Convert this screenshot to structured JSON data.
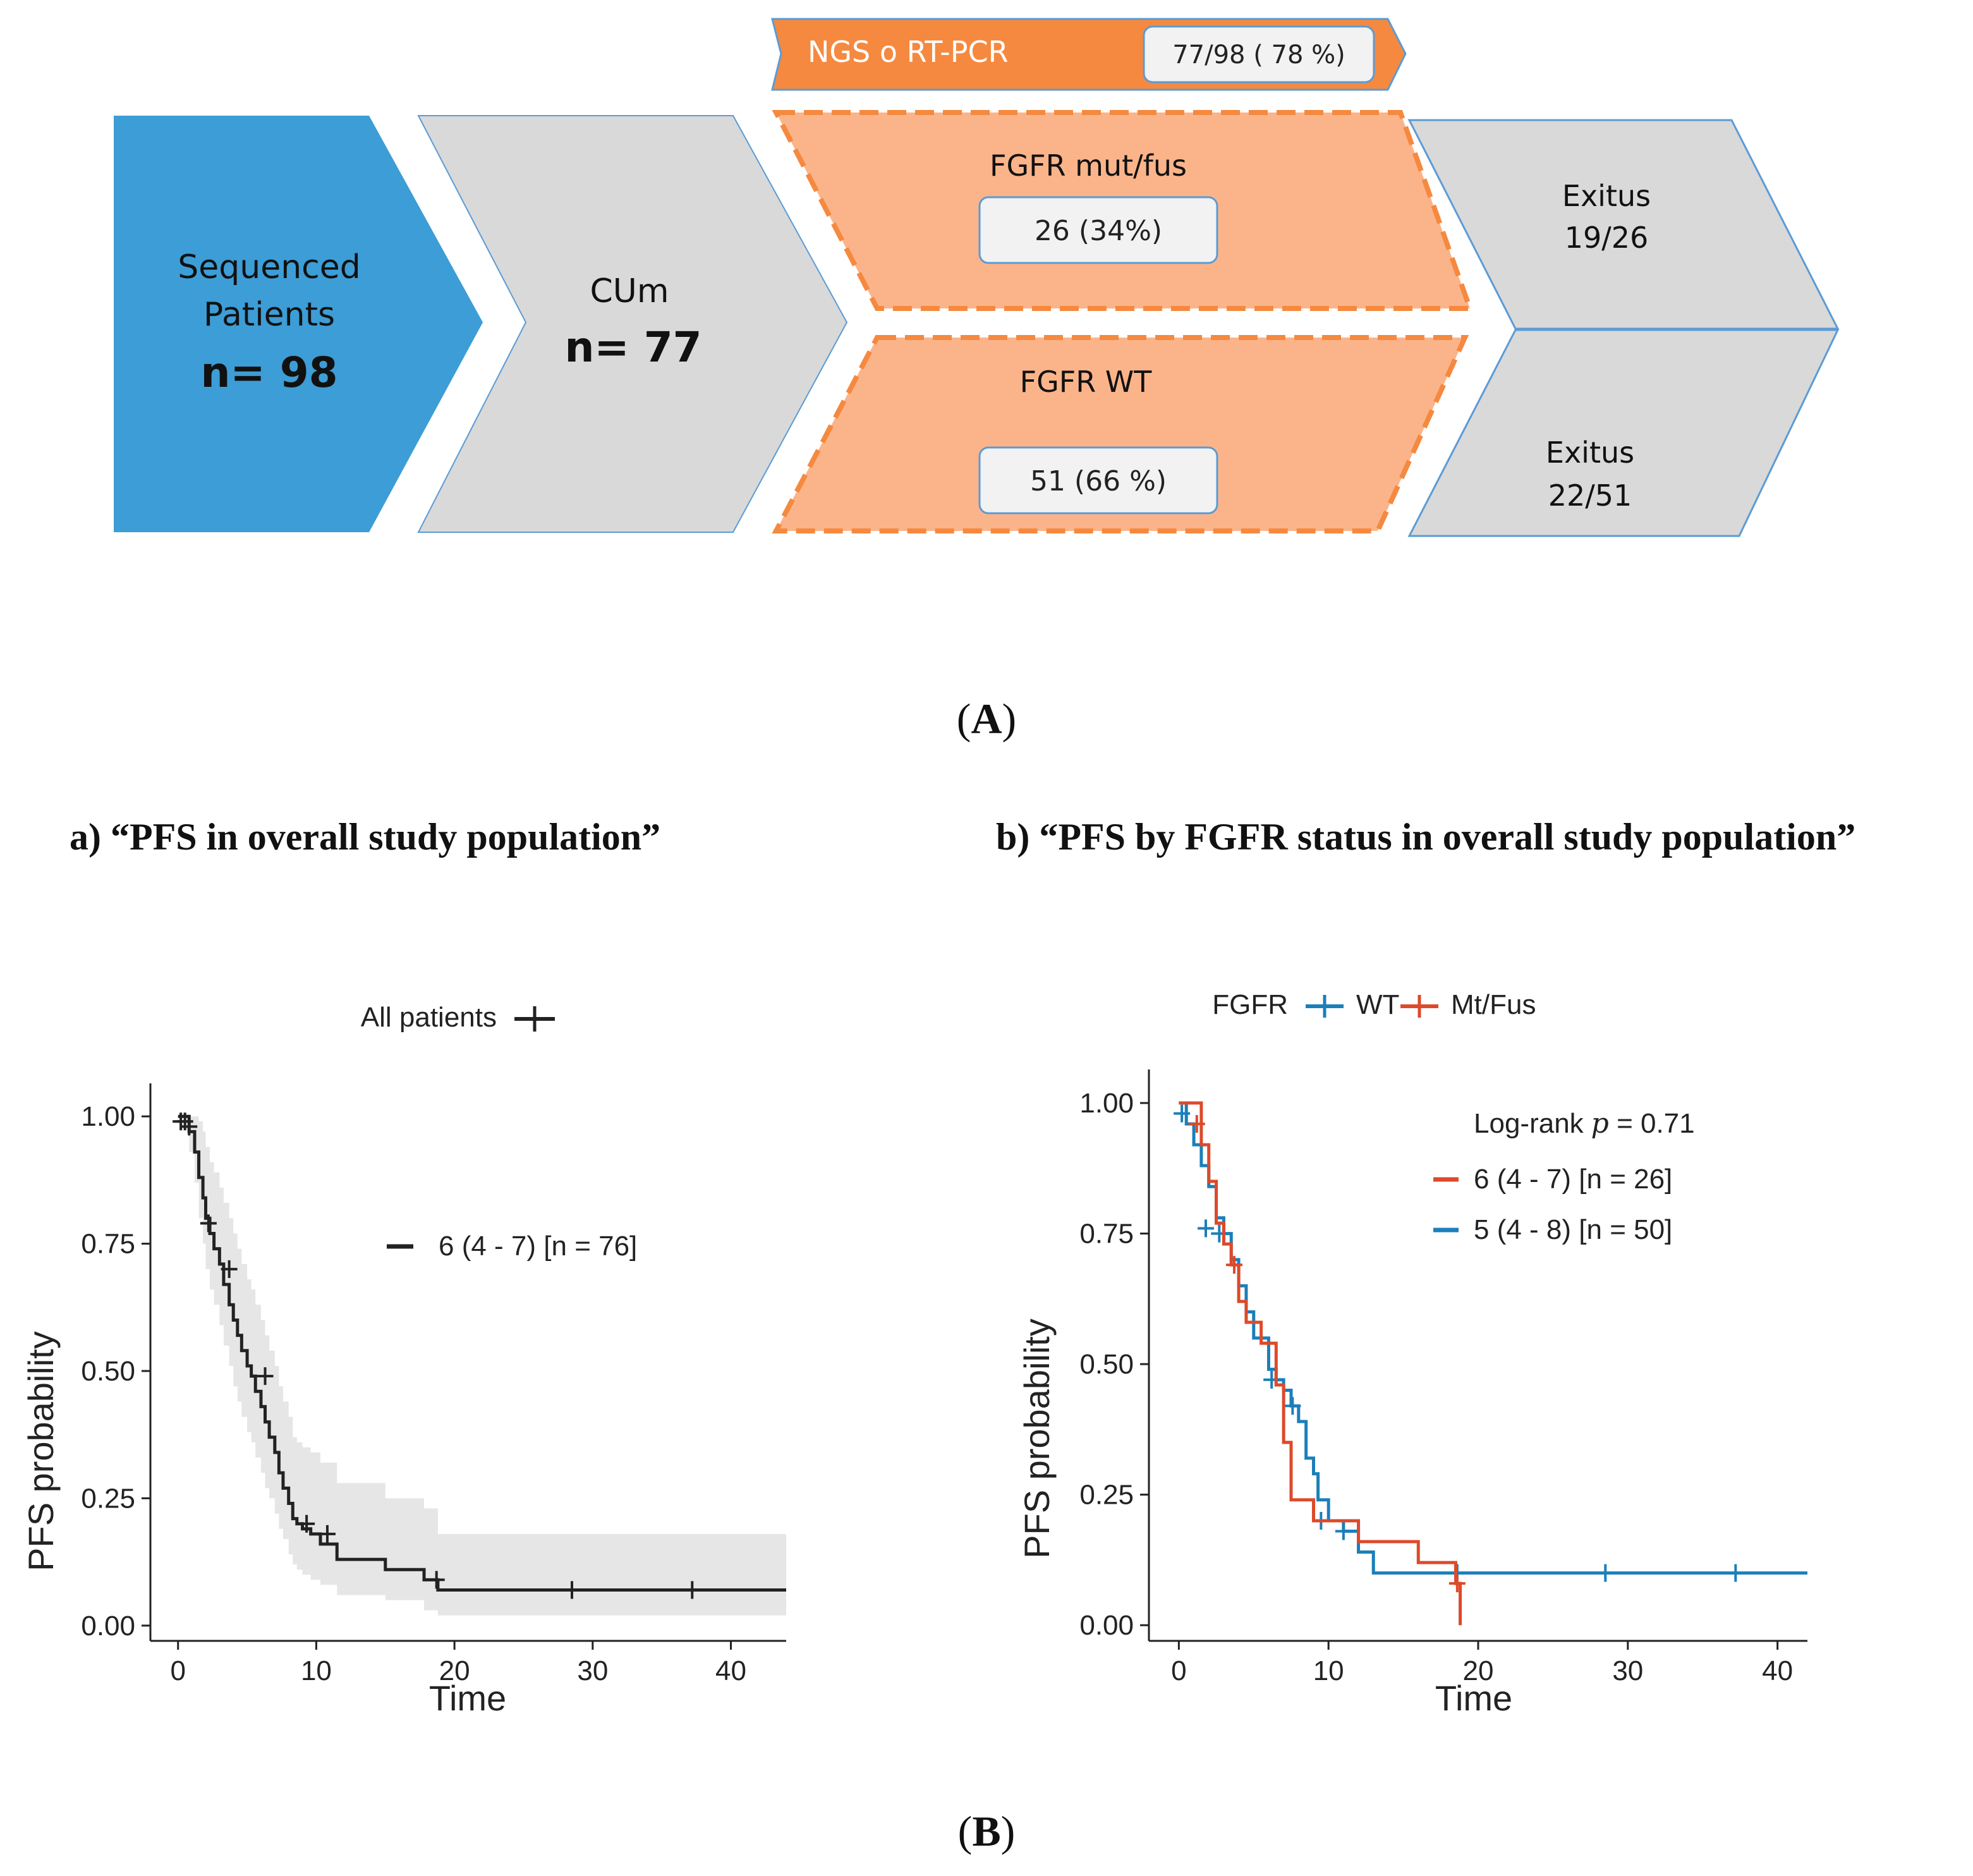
{
  "panelA": {
    "label_open": "(",
    "label": "A",
    "label_close": ")",
    "ngs": {
      "title": "NGS o RT-PCR",
      "value": "77/98 ( 78 %)"
    },
    "sequenced": {
      "line1": "Sequenced",
      "line2": "Patients",
      "count": "n= 98"
    },
    "cum": {
      "line1": "CUm",
      "count": "n= 77"
    },
    "fgfr_mut": {
      "title": "FGFR mut/fus",
      "value": "26 (34%)"
    },
    "fgfr_wt": {
      "title": "FGFR WT",
      "value": "51 (66 %)"
    },
    "exitus_top": {
      "line1": "Exitus",
      "line2": "19/26"
    },
    "exitus_bottom": {
      "line1": "Exitus",
      "line2": "22/51"
    },
    "colors": {
      "blue": "#3d9dd6",
      "gray": "#d9d9d9",
      "orange": "#f5893f",
      "salmon": "#fbb48a"
    }
  },
  "panelB": {
    "label_open": "(",
    "label": "B",
    "label_close": ")"
  },
  "chart_data": [
    {
      "type": "line",
      "subtype": "kaplan-meier",
      "title": "a) “PFS in overall study population”",
      "xlabel": "Time",
      "ylabel": "PFS probability",
      "xlim": [
        -2,
        44
      ],
      "ylim": [
        -0.03,
        1.04
      ],
      "xticks": [
        "0",
        "10",
        "20",
        "30",
        "40"
      ],
      "yticks": [
        "0.00",
        "0.25",
        "0.50",
        "0.75",
        "1.00"
      ],
      "legend": {
        "placement": "top",
        "entries": [
          "All patients"
        ]
      },
      "annotation": "6 (4 - 7) [n = 76]",
      "grid": false,
      "series": [
        {
          "name": "All patients",
          "color": "#222222",
          "x": [
            0,
            0.8,
            1.2,
            1.5,
            1.8,
            2.0,
            2.3,
            2.6,
            3.0,
            3.3,
            3.7,
            4.0,
            4.3,
            4.6,
            5.0,
            5.3,
            5.6,
            6.0,
            6.3,
            6.6,
            7.0,
            7.3,
            7.6,
            8.0,
            8.3,
            8.6,
            9.0,
            9.6,
            10.3,
            11.5,
            12.5,
            15.0,
            17.8,
            18.8,
            44
          ],
          "y": [
            1.0,
            0.97,
            0.93,
            0.88,
            0.84,
            0.8,
            0.77,
            0.74,
            0.71,
            0.67,
            0.63,
            0.6,
            0.57,
            0.54,
            0.51,
            0.49,
            0.46,
            0.43,
            0.4,
            0.37,
            0.34,
            0.3,
            0.27,
            0.24,
            0.21,
            0.2,
            0.19,
            0.18,
            0.16,
            0.13,
            0.13,
            0.11,
            0.09,
            0.07,
            0.07
          ],
          "band_upper": [
            1.0,
            1.0,
            1.0,
            0.99,
            0.97,
            0.94,
            0.91,
            0.89,
            0.86,
            0.83,
            0.8,
            0.77,
            0.74,
            0.71,
            0.68,
            0.66,
            0.63,
            0.6,
            0.57,
            0.54,
            0.51,
            0.47,
            0.44,
            0.41,
            0.37,
            0.36,
            0.35,
            0.34,
            0.32,
            0.28,
            0.28,
            0.25,
            0.23,
            0.18,
            0.18
          ],
          "band_lower": [
            1.0,
            0.93,
            0.87,
            0.8,
            0.75,
            0.7,
            0.66,
            0.63,
            0.59,
            0.55,
            0.51,
            0.47,
            0.44,
            0.41,
            0.38,
            0.36,
            0.33,
            0.3,
            0.27,
            0.25,
            0.22,
            0.19,
            0.17,
            0.14,
            0.12,
            0.11,
            0.1,
            0.09,
            0.08,
            0.06,
            0.06,
            0.05,
            0.03,
            0.02,
            0.02
          ],
          "censor_x": [
            0.2,
            0.5,
            0.8,
            2.2,
            3.7,
            6.3,
            9.3,
            10.8,
            18.7,
            28.5,
            37.2
          ],
          "censor_y": [
            0.99,
            0.99,
            0.98,
            0.79,
            0.7,
            0.49,
            0.2,
            0.18,
            0.09,
            0.07,
            0.07
          ]
        }
      ]
    },
    {
      "type": "line",
      "subtype": "kaplan-meier",
      "title": "b) “PFS by FGFR status in overall study population”",
      "xlabel": "Time",
      "ylabel": "PFS probability",
      "xlim": [
        -2,
        42
      ],
      "ylim": [
        -0.03,
        1.04
      ],
      "xticks": [
        "0",
        "10",
        "20",
        "30",
        "40"
      ],
      "yticks": [
        "0.00",
        "0.25",
        "0.50",
        "0.75",
        "1.00"
      ],
      "legend": {
        "placement": "top",
        "title": "FGFR",
        "entries": [
          "WT",
          "Mt/Fus"
        ]
      },
      "annotations": [
        "Log-rank",
        "𝑝",
        " = 0.71",
        "6 (4 - 7) [n = 26]",
        "5 (4 - 8) [n = 50]"
      ],
      "grid": false,
      "series": [
        {
          "name": "WT",
          "color": "#1b7fba",
          "x": [
            0,
            0.5,
            1.0,
            1.5,
            2.0,
            2.5,
            3.0,
            3.5,
            4.0,
            4.5,
            5.0,
            6.0,
            6.5,
            7.0,
            7.5,
            8.0,
            8.5,
            9.0,
            9.3,
            10.0,
            11.0,
            12.0,
            13.0,
            18.8,
            42
          ],
          "y": [
            1.0,
            0.96,
            0.92,
            0.88,
            0.84,
            0.78,
            0.75,
            0.7,
            0.65,
            0.6,
            0.55,
            0.49,
            0.47,
            0.45,
            0.42,
            0.39,
            0.32,
            0.29,
            0.24,
            0.2,
            0.18,
            0.14,
            0.1,
            0.1,
            0.1
          ],
          "censor_x": [
            0.2,
            1.8,
            2.7,
            6.2,
            7.6,
            9.5,
            11.0,
            18.6,
            28.5,
            37.2
          ],
          "censor_y": [
            0.98,
            0.76,
            0.75,
            0.47,
            0.42,
            0.2,
            0.18,
            0.1,
            0.1,
            0.1
          ]
        },
        {
          "name": "Mt/Fus",
          "color": "#dc4a2a",
          "x": [
            0,
            1.5,
            2.0,
            2.5,
            3.0,
            3.5,
            4.0,
            4.5,
            5.5,
            6.5,
            7.0,
            7.5,
            9.0,
            12.0,
            16.0,
            18.5,
            18.8
          ],
          "y": [
            1.0,
            0.92,
            0.85,
            0.77,
            0.73,
            0.69,
            0.62,
            0.58,
            0.54,
            0.46,
            0.35,
            0.24,
            0.2,
            0.16,
            0.12,
            0.08,
            0.0
          ],
          "censor_x": [
            1.2,
            3.7,
            18.6
          ],
          "censor_y": [
            0.96,
            0.69,
            0.08
          ]
        }
      ]
    }
  ]
}
